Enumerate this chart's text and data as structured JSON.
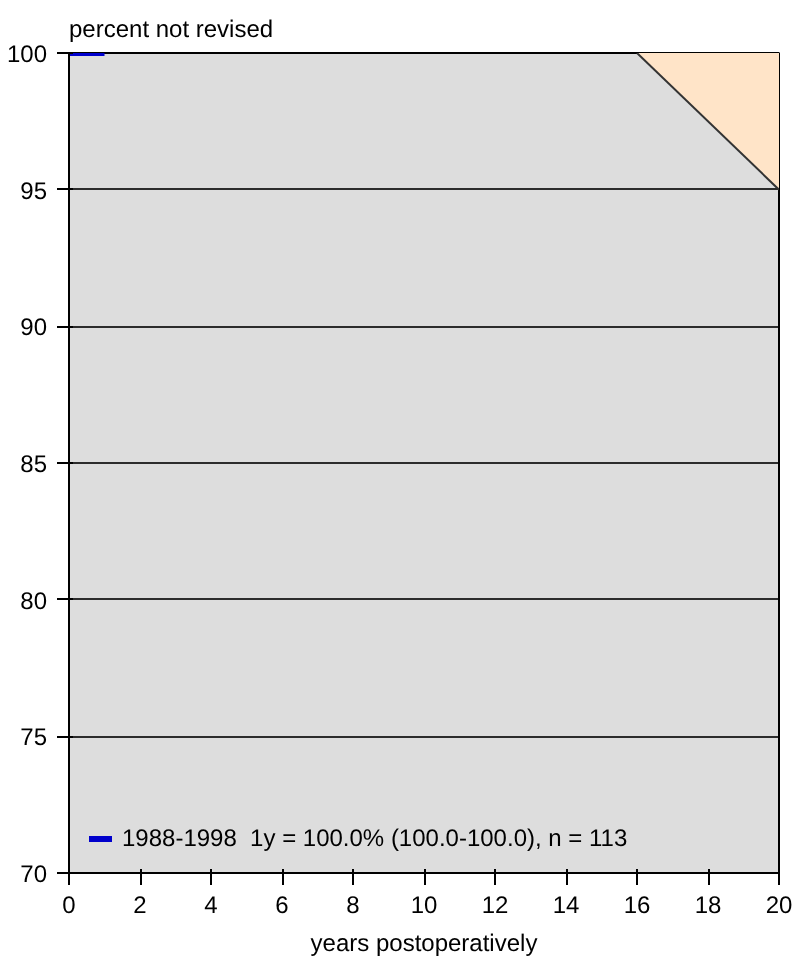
{
  "chart_data": {
    "type": "line",
    "ylabel": "percent not revised",
    "xlabel": "years postoperatively",
    "xlim": [
      0,
      20
    ],
    "xticks": [
      0,
      2,
      4,
      6,
      8,
      10,
      12,
      14,
      16,
      18,
      20
    ],
    "ylim": [
      70,
      100
    ],
    "yticks": [
      70,
      75,
      80,
      85,
      90,
      95,
      100
    ],
    "grid": "y",
    "legend": "bottom left",
    "marker": "none",
    "line_style": "solid",
    "series": [
      {
        "type": "area",
        "color": "#ffe4c8",
        "x": [
          16,
          20
        ],
        "values": [
          100,
          95
        ]
      },
      {
        "name": "1988-1998  1y = 100.0% (100.0-100.0), n = 113",
        "color": "#0000cc",
        "x": [
          0,
          1
        ],
        "values": [
          100,
          100
        ]
      }
    ]
  }
}
